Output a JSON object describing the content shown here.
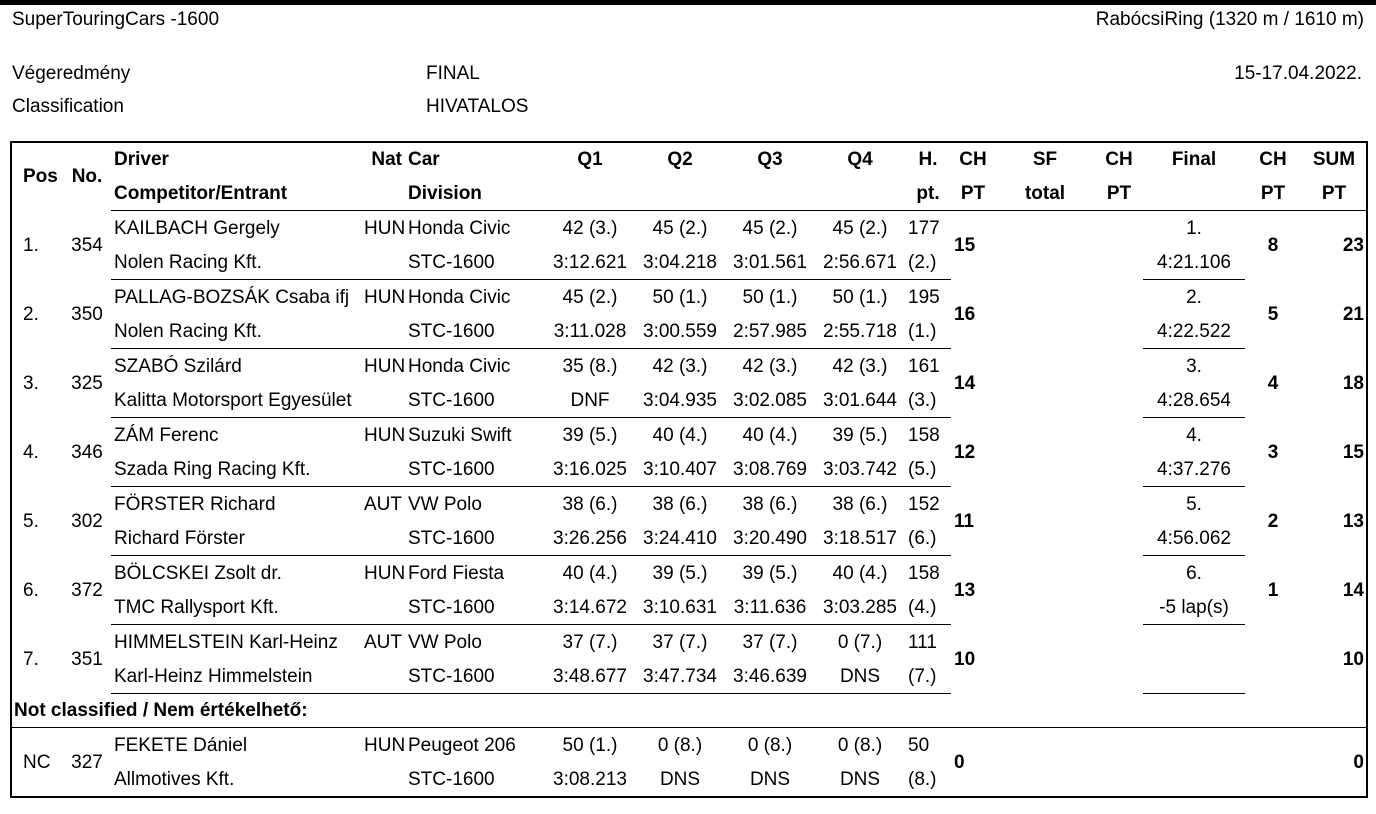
{
  "header": {
    "series": "SuperTouringCars -1600",
    "track": "RabócsiRing (1320 m / 1610 m)",
    "result_hu": "Végeredmény",
    "result_en": "Classification",
    "status_1": "FINAL",
    "status_2": "HIVATALOS",
    "date": "15-17.04.2022."
  },
  "columns": {
    "pos": "Pos",
    "no": "No.",
    "driver": "Driver",
    "competitor": "Competitor/Entrant",
    "nat": "Nat",
    "car": "Car",
    "division": "Division",
    "q1": "Q1",
    "q2": "Q2",
    "q3": "Q3",
    "q4": "Q4",
    "hpt_1": "H.",
    "hpt_2": "pt.",
    "chpt1_1": "CH",
    "chpt1_2": "PT",
    "sf_1": "SF",
    "sf_2": "total",
    "chpt2_1": "CH",
    "chpt2_2": "PT",
    "final": "Final",
    "chpt3_1": "CH",
    "chpt3_2": "PT",
    "sum_1": "SUM",
    "sum_2": "PT"
  },
  "rows": [
    {
      "pos": "1.",
      "no": "354",
      "driver": "KAILBACH Gergely",
      "entrant": "Nolen Racing Kft.",
      "nat": "HUN",
      "car": "Honda Civic",
      "division": "STC-1600",
      "q1_pts": "42 (3.)",
      "q1_time": "3:12.621",
      "q2_pts": "45 (2.)",
      "q2_time": "3:04.218",
      "q3_pts": "45 (2.)",
      "q3_time": "3:01.561",
      "q4_pts": "45 (2.)",
      "q4_time": "2:56.671",
      "hpt": "177",
      "hpos": "(2.)",
      "ch_q": "15",
      "sf": "",
      "ch_sf": "",
      "final_pos": "1.",
      "final_time": "4:21.106",
      "ch_final": "8",
      "sum": "23"
    },
    {
      "pos": "2.",
      "no": "350",
      "driver": "PALLAG-BOZSÁK Csaba ifj",
      "entrant": "Nolen Racing Kft.",
      "nat": "HUN",
      "car": "Honda Civic",
      "division": "STC-1600",
      "q1_pts": "45 (2.)",
      "q1_time": "3:11.028",
      "q2_pts": "50 (1.)",
      "q2_time": "3:00.559",
      "q3_pts": "50 (1.)",
      "q3_time": "2:57.985",
      "q4_pts": "50 (1.)",
      "q4_time": "2:55.718",
      "hpt": "195",
      "hpos": "(1.)",
      "ch_q": "16",
      "sf": "",
      "ch_sf": "",
      "final_pos": "2.",
      "final_time": "4:22.522",
      "ch_final": "5",
      "sum": "21"
    },
    {
      "pos": "3.",
      "no": "325",
      "driver": "SZABÓ Szilárd",
      "entrant": "Kalitta Motorsport Egyesület",
      "nat": "HUN",
      "car": "Honda Civic",
      "division": "STC-1600",
      "q1_pts": "35 (8.)",
      "q1_time": "DNF",
      "q2_pts": "42 (3.)",
      "q2_time": "3:04.935",
      "q3_pts": "42 (3.)",
      "q3_time": "3:02.085",
      "q4_pts": "42 (3.)",
      "q4_time": "3:01.644",
      "hpt": "161",
      "hpos": "(3.)",
      "ch_q": "14",
      "sf": "",
      "ch_sf": "",
      "final_pos": "3.",
      "final_time": "4:28.654",
      "ch_final": "4",
      "sum": "18"
    },
    {
      "pos": "4.",
      "no": "346",
      "driver": "ZÁM Ferenc",
      "entrant": "Szada Ring Racing Kft.",
      "nat": "HUN",
      "car": "Suzuki Swift",
      "division": "STC-1600",
      "q1_pts": "39 (5.)",
      "q1_time": "3:16.025",
      "q2_pts": "40 (4.)",
      "q2_time": "3:10.407",
      "q3_pts": "40 (4.)",
      "q3_time": "3:08.769",
      "q4_pts": "39 (5.)",
      "q4_time": "3:03.742",
      "hpt": "158",
      "hpos": "(5.)",
      "ch_q": "12",
      "sf": "",
      "ch_sf": "",
      "final_pos": "4.",
      "final_time": "4:37.276",
      "ch_final": "3",
      "sum": "15"
    },
    {
      "pos": "5.",
      "no": "302",
      "driver": "FÖRSTER Richard",
      "entrant": "Richard Förster",
      "nat": "AUT",
      "car": "VW Polo",
      "division": "STC-1600",
      "q1_pts": "38 (6.)",
      "q1_time": "3:26.256",
      "q2_pts": "38 (6.)",
      "q2_time": "3:24.410",
      "q3_pts": "38 (6.)",
      "q3_time": "3:20.490",
      "q4_pts": "38 (6.)",
      "q4_time": "3:18.517",
      "hpt": "152",
      "hpos": "(6.)",
      "ch_q": "11",
      "sf": "",
      "ch_sf": "",
      "final_pos": "5.",
      "final_time": "4:56.062",
      "ch_final": "2",
      "sum": "13"
    },
    {
      "pos": "6.",
      "no": "372",
      "driver": "BÖLCSKEI Zsolt dr.",
      "entrant": "TMC Rallysport Kft.",
      "nat": "HUN",
      "car": "Ford Fiesta",
      "division": "STC-1600",
      "q1_pts": "40 (4.)",
      "q1_time": "3:14.672",
      "q2_pts": "39 (5.)",
      "q2_time": "3:10.631",
      "q3_pts": "39 (5.)",
      "q3_time": "3:11.636",
      "q4_pts": "40 (4.)",
      "q4_time": "3:03.285",
      "hpt": "158",
      "hpos": "(4.)",
      "ch_q": "13",
      "sf": "",
      "ch_sf": "",
      "final_pos": "6.",
      "final_time": "-5 lap(s)",
      "ch_final": "1",
      "sum": "14"
    },
    {
      "pos": "7.",
      "no": "351",
      "driver": "HIMMELSTEIN Karl-Heinz",
      "entrant": "Karl-Heinz Himmelstein",
      "nat": "AUT",
      "car": "VW Polo",
      "division": "STC-1600",
      "q1_pts": "37 (7.)",
      "q1_time": "3:48.677",
      "q2_pts": "37 (7.)",
      "q2_time": "3:47.734",
      "q3_pts": "37 (7.)",
      "q3_time": "3:46.639",
      "q4_pts": "0 (7.)",
      "q4_time": "DNS",
      "hpt": "111",
      "hpos": "(7.)",
      "ch_q": "10",
      "sf": "",
      "ch_sf": "",
      "final_pos": "",
      "final_time": "",
      "ch_final": "",
      "sum": "10"
    }
  ],
  "nc_heading": "Not classified / Nem értékelhető:",
  "nc_rows": [
    {
      "pos": "NC",
      "no": "327",
      "driver": "FEKETE Dániel",
      "entrant": "Allmotives Kft.",
      "nat": "HUN",
      "car": "Peugeot 206",
      "division": "STC-1600",
      "q1_pts": "50 (1.)",
      "q1_time": "3:08.213",
      "q2_pts": "0 (8.)",
      "q2_time": "DNS",
      "q3_pts": "0 (8.)",
      "q3_time": "DNS",
      "q4_pts": "0 (8.)",
      "q4_time": "DNS",
      "hpt": "50",
      "hpos": "(8.)",
      "ch_q": "0",
      "sf": "",
      "ch_sf": "",
      "final_pos": "",
      "final_time": "",
      "ch_final": "",
      "sum": "0"
    }
  ]
}
